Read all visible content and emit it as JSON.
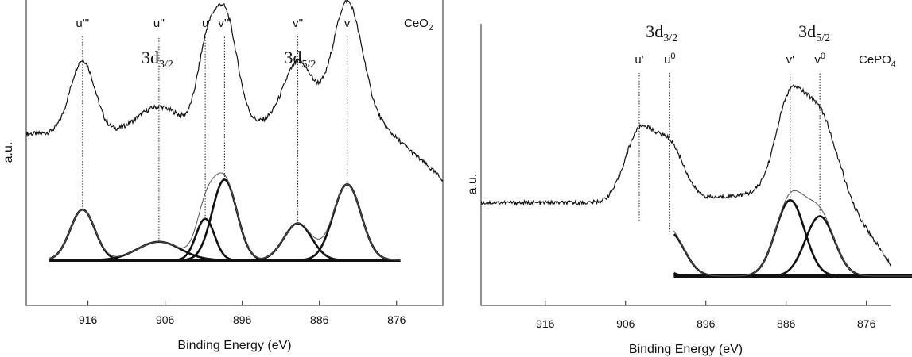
{
  "colors": {
    "ink": "#111111",
    "fit": "#555555",
    "frame": "#222222"
  },
  "chart_data": [
    {
      "type": "line",
      "sample": "CeO",
      "sample_sub": "2",
      "xlabel": "Binding Energy (eV)",
      "ylabel": "a.u.",
      "xlim": [
        924,
        870
      ],
      "xticks": [
        916,
        906,
        896,
        886,
        876
      ],
      "reversed_x": true,
      "ylim": [
        0,
        1
      ],
      "region_labels": [
        {
          "main": "3d",
          "sub": "3/2",
          "x": 907
        },
        {
          "main": "3d",
          "sub": "5/2",
          "x": 888.5
        }
      ],
      "peaks": [
        {
          "name": "u'''",
          "x": 916.7,
          "h": 0.22,
          "w": 1.6
        },
        {
          "name": "u''",
          "x": 906.8,
          "h": 0.08,
          "w": 2.8
        },
        {
          "name": "u",
          "x": 900.8,
          "h": 0.18,
          "w": 1.2
        },
        {
          "name": "v'''",
          "x": 898.3,
          "h": 0.35,
          "w": 1.6
        },
        {
          "name": "v''",
          "x": 888.8,
          "h": 0.16,
          "w": 1.8
        },
        {
          "name": "v",
          "x": 882.4,
          "h": 0.33,
          "w": 1.8
        }
      ],
      "peak_labels": [
        {
          "text": "u'''",
          "x": 916.7
        },
        {
          "text": "u''",
          "x": 906.8
        },
        {
          "text": "u",
          "x": 900.8
        },
        {
          "text": "v'''",
          "x": 898.3
        },
        {
          "text": "v''",
          "x": 888.8
        },
        {
          "text": "v",
          "x": 882.4
        }
      ]
    },
    {
      "type": "line",
      "sample": "CePO",
      "sample_sub": "4",
      "xlabel": "Binding Energy (eV)",
      "ylabel": "a.u.",
      "xlim": [
        924,
        873
      ],
      "xticks": [
        916,
        906,
        896,
        886,
        876
      ],
      "reversed_x": true,
      "ylim": [
        0,
        1
      ],
      "region_labels": [
        {
          "main": "3d",
          "sub": "3/2",
          "x": 901.5
        },
        {
          "main": "3d",
          "sub": "5/2",
          "x": 882.5
        }
      ],
      "peaks": [
        {
          "name": "u'",
          "x": 904.3,
          "h": 0.24,
          "w": 1.8
        },
        {
          "name": "u0",
          "x": 900.5,
          "h": 0.19,
          "w": 1.8
        },
        {
          "name": "v'",
          "x": 885.5,
          "h": 0.33,
          "w": 1.8
        },
        {
          "name": "v0",
          "x": 881.8,
          "h": 0.26,
          "w": 1.8
        }
      ],
      "peak_labels": [
        {
          "text": "u'",
          "sup": "",
          "x": 904.3
        },
        {
          "text": "u",
          "sup": "0",
          "x": 900.5
        },
        {
          "text": "v'",
          "sup": "",
          "x": 885.5
        },
        {
          "text": "v",
          "sup": "0",
          "x": 881.8
        }
      ]
    }
  ]
}
